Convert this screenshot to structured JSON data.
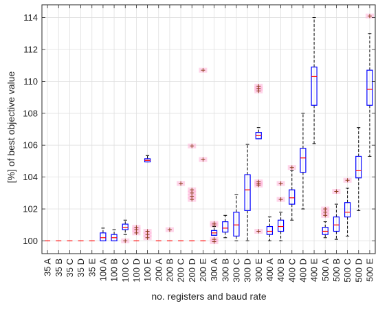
{
  "chart_data": {
    "type": "box",
    "title": "",
    "xlabel": "no. registers and baud rate",
    "ylabel": "[%] of best objective value",
    "ylim": [
      99.2,
      114.8
    ],
    "y_ticks": [
      100,
      102,
      104,
      106,
      108,
      110,
      112,
      114
    ],
    "grid": true,
    "legend": "none",
    "colors": {
      "box": "#0000ff",
      "median": "#ff0000",
      "whisker": "#000000",
      "outlier": "#8b3a1a",
      "outlier_glow": "#ffb3d9"
    },
    "categories": [
      "35 A",
      "35 B",
      "35 C",
      "35 D",
      "35 E",
      "100 A",
      "100 B",
      "100 C",
      "100 D",
      "100 E",
      "200 A",
      "200 B",
      "200 C",
      "200 D",
      "200 E",
      "300 A",
      "300 B",
      "300 C",
      "300 D",
      "300 E",
      "400 A",
      "400 B",
      "400 C",
      "400 D",
      "400 E",
      "500 A",
      "500 B",
      "500 C",
      "500 D",
      "500 E"
    ],
    "boxes": [
      {
        "min": 100.0,
        "q1": 100.0,
        "median": 100.0,
        "q3": 100.0,
        "max": 100.0,
        "outliers": []
      },
      {
        "min": 100.0,
        "q1": 100.0,
        "median": 100.0,
        "q3": 100.0,
        "max": 100.0,
        "outliers": []
      },
      {
        "min": 100.0,
        "q1": 100.0,
        "median": 100.0,
        "q3": 100.0,
        "max": 100.0,
        "outliers": []
      },
      {
        "min": 100.0,
        "q1": 100.0,
        "median": 100.0,
        "q3": 100.0,
        "max": 100.0,
        "outliers": []
      },
      {
        "min": 100.0,
        "q1": 100.0,
        "median": 100.0,
        "q3": 100.0,
        "max": 100.0,
        "outliers": []
      },
      {
        "min": 100.0,
        "q1": 100.0,
        "median": 100.2,
        "q3": 100.5,
        "max": 100.8,
        "outliers": []
      },
      {
        "min": 100.0,
        "q1": 100.0,
        "median": 100.2,
        "q3": 100.4,
        "max": 100.7,
        "outliers": []
      },
      {
        "min": 100.4,
        "q1": 100.7,
        "median": 100.85,
        "q3": 101.05,
        "max": 101.3,
        "outliers": [
          100.0
        ]
      },
      {
        "min": 100.0,
        "q1": 100.0,
        "median": 100.0,
        "q3": 100.0,
        "max": 100.0,
        "outliers": [
          100.5,
          100.7,
          100.85
        ]
      },
      {
        "min": 104.95,
        "q1": 104.95,
        "median": 105.05,
        "q3": 105.15,
        "max": 105.35,
        "outliers": [
          100.2,
          100.4,
          100.6
        ]
      },
      {
        "min": 100.0,
        "q1": 100.0,
        "median": 100.0,
        "q3": 100.0,
        "max": 100.0,
        "outliers": []
      },
      {
        "min": 100.0,
        "q1": 100.0,
        "median": 100.0,
        "q3": 100.0,
        "max": 100.0,
        "outliers": [
          100.7
        ]
      },
      {
        "min": 100.0,
        "q1": 100.0,
        "median": 100.0,
        "q3": 100.0,
        "max": 100.0,
        "outliers": [
          103.6
        ]
      },
      {
        "min": 100.0,
        "q1": 100.0,
        "median": 100.0,
        "q3": 100.0,
        "max": 100.0,
        "outliers": [
          102.6,
          102.8,
          103.0,
          103.2,
          105.95
        ]
      },
      {
        "min": 100.0,
        "q1": 100.0,
        "median": 100.0,
        "q3": 100.0,
        "max": 100.0,
        "outliers": [
          105.1,
          110.7
        ]
      },
      {
        "min": 100.35,
        "q1": 100.35,
        "median": 100.5,
        "q3": 100.65,
        "max": 100.9,
        "outliers": [
          99.95,
          100.1,
          101.0,
          101.1
        ]
      },
      {
        "min": 100.2,
        "q1": 100.55,
        "median": 100.8,
        "q3": 101.2,
        "max": 101.6,
        "outliers": []
      },
      {
        "min": 100.0,
        "q1": 100.3,
        "median": 101.0,
        "q3": 101.8,
        "max": 102.9,
        "outliers": []
      },
      {
        "min": 100.0,
        "q1": 101.9,
        "median": 103.2,
        "q3": 104.15,
        "max": 106.05,
        "outliers": []
      },
      {
        "min": 106.4,
        "q1": 106.4,
        "median": 106.6,
        "q3": 106.8,
        "max": 107.1,
        "outliers": [
          100.6,
          103.5,
          103.6,
          103.7,
          109.4,
          109.55,
          109.7
        ]
      },
      {
        "min": 100.0,
        "q1": 100.4,
        "median": 100.6,
        "q3": 100.9,
        "max": 101.5,
        "outliers": []
      },
      {
        "min": 100.0,
        "q1": 100.6,
        "median": 100.9,
        "q3": 101.3,
        "max": 101.8,
        "outliers": [
          102.6,
          103.6
        ]
      },
      {
        "min": 101.3,
        "q1": 102.3,
        "median": 102.7,
        "q3": 103.2,
        "max": 104.4,
        "outliers": [
          104.6
        ]
      },
      {
        "min": 102.0,
        "q1": 104.3,
        "median": 105.2,
        "q3": 105.8,
        "max": 108.0,
        "outliers": []
      },
      {
        "min": 106.1,
        "q1": 108.5,
        "median": 110.3,
        "q3": 110.9,
        "max": 114.0,
        "outliers": []
      },
      {
        "min": 100.2,
        "q1": 100.4,
        "median": 100.6,
        "q3": 100.85,
        "max": 101.2,
        "outliers": [
          101.6,
          101.8,
          102.0
        ]
      },
      {
        "min": 100.1,
        "q1": 100.6,
        "median": 101.0,
        "q3": 101.5,
        "max": 102.3,
        "outliers": [
          103.1
        ]
      },
      {
        "min": 100.3,
        "q1": 101.5,
        "median": 101.8,
        "q3": 102.4,
        "max": 103.3,
        "outliers": [
          103.8
        ]
      },
      {
        "min": 101.9,
        "q1": 103.95,
        "median": 104.4,
        "q3": 105.3,
        "max": 107.1,
        "outliers": []
      },
      {
        "min": 105.3,
        "q1": 108.5,
        "median": 109.5,
        "q3": 110.7,
        "max": 113.0,
        "outliers": [
          114.1
        ]
      }
    ]
  }
}
